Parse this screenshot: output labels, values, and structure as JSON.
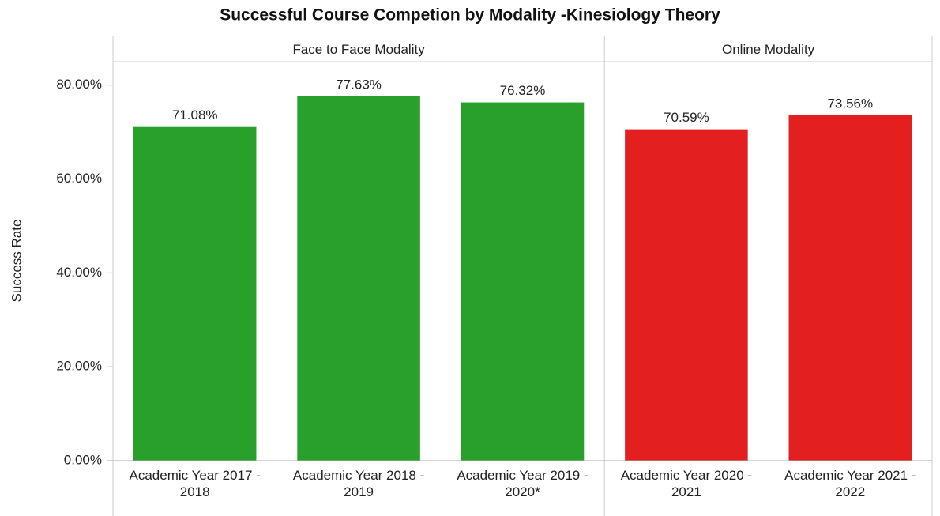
{
  "chart_data": {
    "type": "bar",
    "title": "Successful Course Competion by Modality -Kinesiology Theory",
    "y_label": "Success Rate",
    "ylim": [
      0,
      85
    ],
    "yticks": [
      {
        "value": 0,
        "label": "0.00%"
      },
      {
        "value": 20,
        "label": "20.00%"
      },
      {
        "value": 40,
        "label": "40.00%"
      },
      {
        "value": 60,
        "label": "60.00%"
      },
      {
        "value": 80,
        "label": "80.00%"
      }
    ],
    "groups": [
      {
        "name": "Face to Face Modality",
        "color": "#28a02b",
        "categories": [
          "Academic Year 2017 - 2018",
          "Academic Year 2018 - 2019",
          "Academic Year 2019 - 2020*"
        ],
        "values": [
          71.08,
          77.63,
          76.32
        ],
        "value_labels": [
          "71.08%",
          "77.63%",
          "76.32%"
        ]
      },
      {
        "name": "Online Modality",
        "color": "#e41f1f",
        "categories": [
          "Academic Year 2020 - 2021",
          "Academic Year 2021 - 2022"
        ],
        "values": [
          70.59,
          73.56
        ],
        "value_labels": [
          "70.59%",
          "73.56%"
        ]
      }
    ]
  }
}
